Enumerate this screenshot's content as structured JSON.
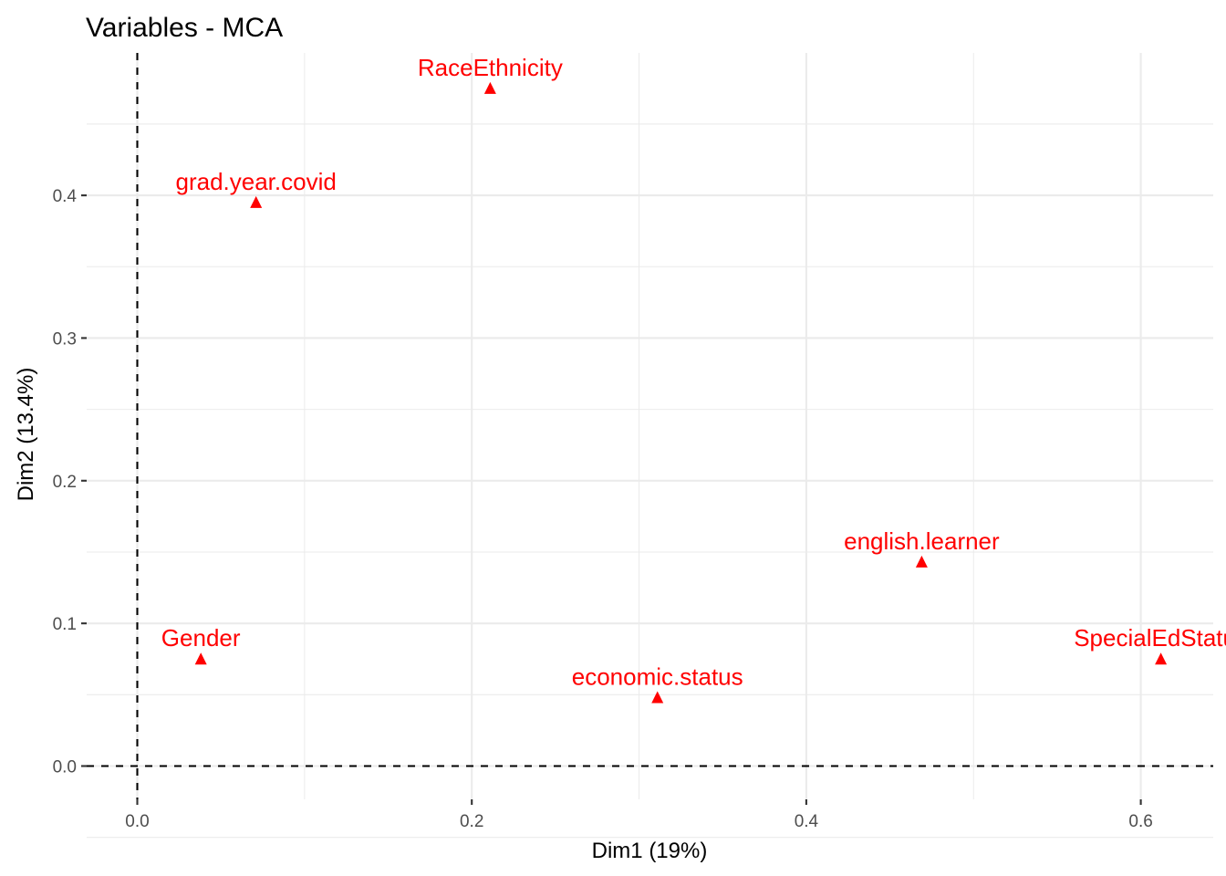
{
  "chart_data": {
    "type": "scatter",
    "title": "Variables - MCA",
    "xlabel": "Dim1 (19%)",
    "ylabel": "Dim2 (13.4%)",
    "xlim": [
      -0.03,
      0.64
    ],
    "ylim": [
      -0.02,
      0.49
    ],
    "x_ticks": [
      0.0,
      0.2,
      0.4,
      0.6
    ],
    "x_tick_labels": [
      "0.0",
      "0.2",
      "0.4",
      "0.6"
    ],
    "y_ticks": [
      0.0,
      0.1,
      0.2,
      0.3,
      0.4
    ],
    "y_tick_labels": [
      "0.0",
      "0.1",
      "0.2",
      "0.3",
      "0.4"
    ],
    "reference_lines": {
      "x": 0,
      "y": 0,
      "style": "dashed"
    },
    "grid": true,
    "marker": "triangle",
    "marker_color": "#ff0000",
    "label_color": "#ff0000",
    "points": [
      {
        "label": "RaceEthnicity",
        "x": 0.211,
        "y": 0.475
      },
      {
        "label": "grad.year.covid",
        "x": 0.071,
        "y": 0.395
      },
      {
        "label": "english.learner",
        "x": 0.469,
        "y": 0.143
      },
      {
        "label": "Gender",
        "x": 0.038,
        "y": 0.075
      },
      {
        "label": "SpecialEdStatus",
        "x": 0.612,
        "y": 0.075
      },
      {
        "label": "economic.status",
        "x": 0.311,
        "y": 0.048
      }
    ]
  }
}
